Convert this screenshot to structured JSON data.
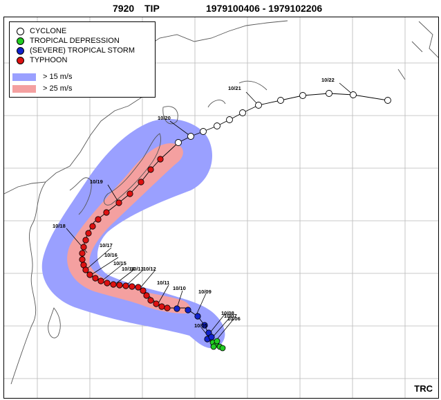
{
  "header": {
    "storm_id": "7920",
    "storm_name": "TIP",
    "period": "1979100406 - 1979102206"
  },
  "legend": {
    "categories": [
      {
        "label": "CYCLONE",
        "color": "#ffffff"
      },
      {
        "label": "TROPICAL DEPRESSION",
        "color": "#22cc22"
      },
      {
        "label": "(SEVERE) TROPICAL STORM",
        "color": "#1122cc"
      },
      {
        "label": "TYPHOON",
        "color": "#dd1111"
      }
    ],
    "wind_areas": [
      {
        "label": "> 15 m/s",
        "color": "#9aa0ff"
      },
      {
        "label": "> 25 m/s",
        "color": "#f4a0a0"
      }
    ]
  },
  "track": {
    "date_labels": [
      "10/22",
      "10/21",
      "10/20",
      "10/19",
      "10/18",
      "10/17",
      "10/16",
      "10/15",
      "10/14",
      "10/13",
      "10/12",
      "10/11",
      "10/10",
      "10/09",
      "10/08",
      "10/07",
      "10/06",
      "10/05"
    ]
  },
  "credit": "TRC"
}
